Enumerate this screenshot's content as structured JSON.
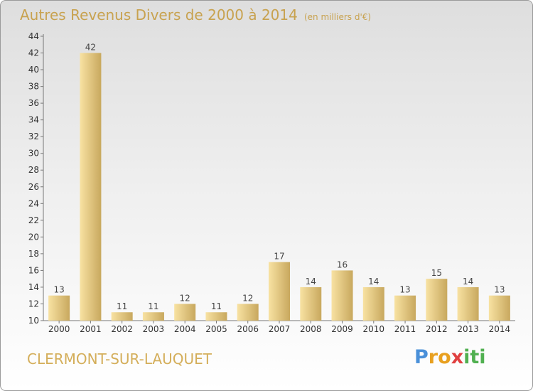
{
  "title": "Autres Revenus Divers de 2000 à 2014",
  "subtitle": "(en milliers d'€)",
  "commune": "CLERMONT-SUR-LAUQUET",
  "logo": {
    "text": "Proxiti",
    "colors": [
      "#4a90d9",
      "#e8a020",
      "#e04040",
      "#50b050"
    ]
  },
  "colors": {
    "bar_light": "#f8e2a2",
    "bar_dark": "#c8a85e",
    "title": "#c8a24f"
  },
  "chart_data": {
    "type": "bar",
    "categories": [
      "2000",
      "2001",
      "2002",
      "2003",
      "2004",
      "2005",
      "2006",
      "2007",
      "2008",
      "2009",
      "2010",
      "2011",
      "2012",
      "2013",
      "2014"
    ],
    "values": [
      13,
      42,
      11,
      11,
      12,
      11,
      12,
      17,
      14,
      16,
      14,
      13,
      15,
      14,
      13
    ],
    "ylim": [
      10,
      44
    ],
    "yticks": [
      10,
      12,
      14,
      16,
      18,
      20,
      22,
      24,
      26,
      28,
      30,
      32,
      34,
      36,
      38,
      40,
      42,
      44
    ],
    "grid": false,
    "data_labels": true
  }
}
